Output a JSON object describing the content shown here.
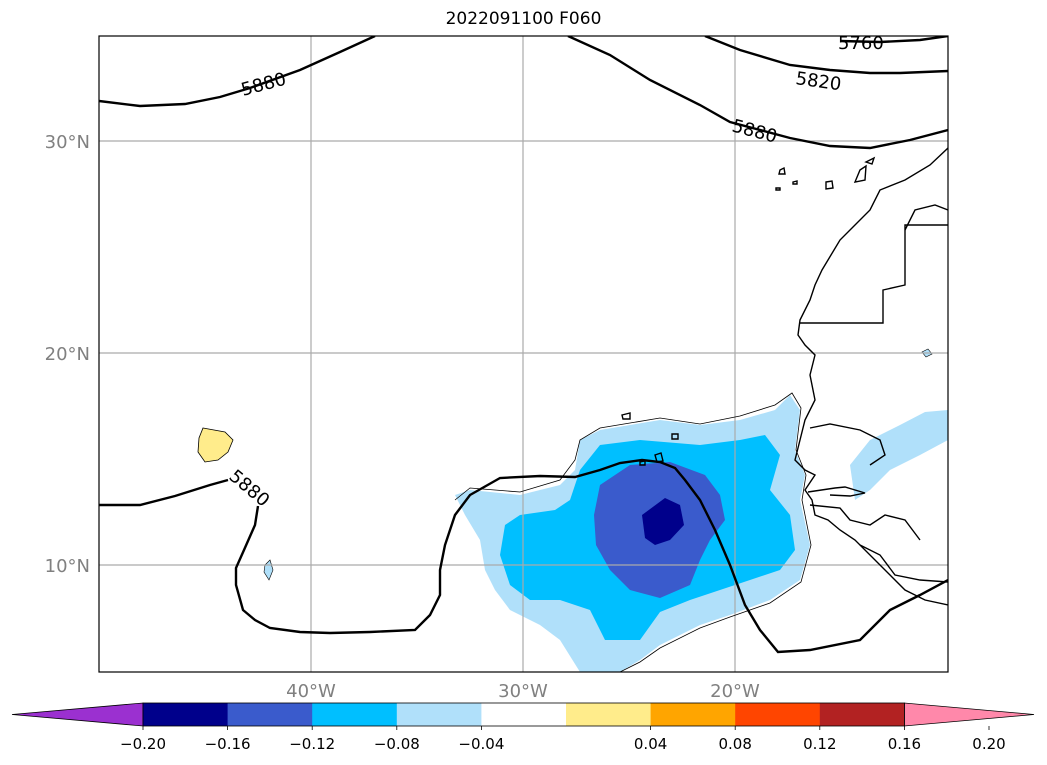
{
  "title": "2022091100 F060",
  "map": {
    "lat_ticks": [
      "30°N",
      "20°N",
      "10°N"
    ],
    "lon_ticks": [
      "40°W",
      "30°W",
      "20°W"
    ],
    "contour_labels": [
      "5760",
      "5820",
      "5880",
      "5880",
      "5880"
    ]
  },
  "colorbar": {
    "ticks": [
      "−0.20",
      "−0.16",
      "−0.12",
      "−0.08",
      "−0.04",
      "0.04",
      "0.08",
      "0.12",
      "0.16",
      "0.20"
    ],
    "colors": {
      "under": "#9b30d0",
      "b1": "#00008b",
      "b2": "#3a5bcc",
      "b3": "#00bfff",
      "b4": "#b0e0fa",
      "b5": "#ffffff",
      "b6": "#ffec8b",
      "b7": "#ffa500",
      "b8": "#ff4500",
      "b9": "#b22222",
      "over": "#ff88aa"
    }
  }
}
